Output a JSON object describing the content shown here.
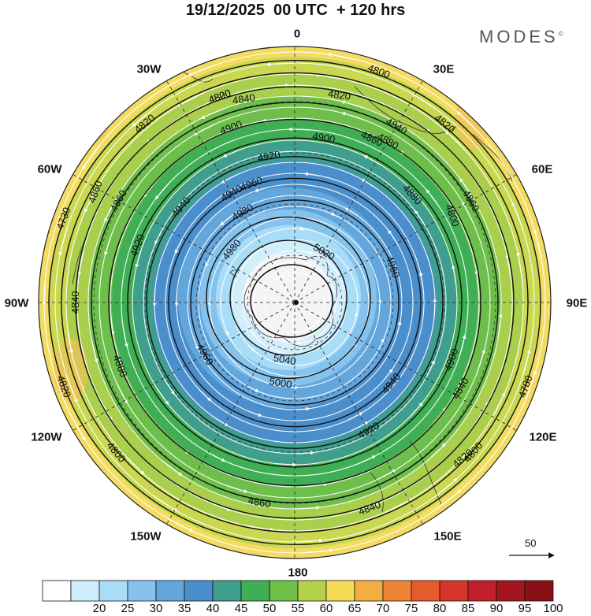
{
  "title": "19/12/2025  00 UTC  + 120 hrs",
  "brand": {
    "text": "MODES",
    "mark": "©"
  },
  "longitude_labels": {
    "n": "0",
    "ne": "30E",
    "nw": "30W",
    "e60": "60E",
    "w60": "60W",
    "e90": "90E",
    "w90": "90W",
    "e120": "120E",
    "w120": "120W",
    "e150": "150E",
    "w150": "150W",
    "s": "180"
  },
  "contours": [
    {
      "ring": 1,
      "labels": [
        "4800",
        "4780",
        "4820",
        "4730"
      ]
    },
    {
      "ring": 2,
      "labels": [
        "4820",
        "4800",
        "4800",
        "4820"
      ]
    },
    {
      "ring": 3,
      "labels": [
        "4800",
        "4840",
        "4840",
        "4820"
      ]
    },
    {
      "ring": 4,
      "labels": [
        "4860",
        "4860",
        "4860",
        "4840"
      ]
    },
    {
      "ring": 5,
      "labels": [
        "4880",
        "4880",
        "4900"
      ]
    },
    {
      "ring": 6,
      "labels": [
        "4900",
        "4900",
        "4920"
      ]
    },
    {
      "ring": 7,
      "labels": [
        "4920",
        "4920",
        "4940"
      ]
    },
    {
      "ring": 8,
      "labels": [
        "4940",
        "4940",
        "4960"
      ]
    },
    {
      "ring": 9,
      "labels": [
        "4960",
        "4960",
        "4980"
      ]
    },
    {
      "ring": 10,
      "labels": [
        "4980",
        "5000"
      ]
    },
    {
      "ring": 11,
      "labels": [
        "5020",
        "5040"
      ]
    }
  ],
  "extra_labels": [
    "4860",
    "4820",
    "4840",
    "4800",
    "4860",
    "4880",
    "4840",
    "4820"
  ],
  "wind_vector_reference": "50",
  "colorbar": {
    "ticks": [
      "20",
      "25",
      "30",
      "35",
      "40",
      "45",
      "50",
      "55",
      "60",
      "65",
      "70",
      "75",
      "80",
      "85",
      "90",
      "95",
      "100"
    ],
    "colors": [
      "#ffffff",
      "#cfeefc",
      "#a9dcf7",
      "#86c3ec",
      "#62a6dc",
      "#4a8fcc",
      "#3f9e8e",
      "#3fae55",
      "#70bf48",
      "#b5d24c",
      "#f5dc58",
      "#f3ad43",
      "#ee8436",
      "#e65b2d",
      "#d6352b",
      "#c01f2b",
      "#a4161f",
      "#8a1018"
    ]
  }
}
